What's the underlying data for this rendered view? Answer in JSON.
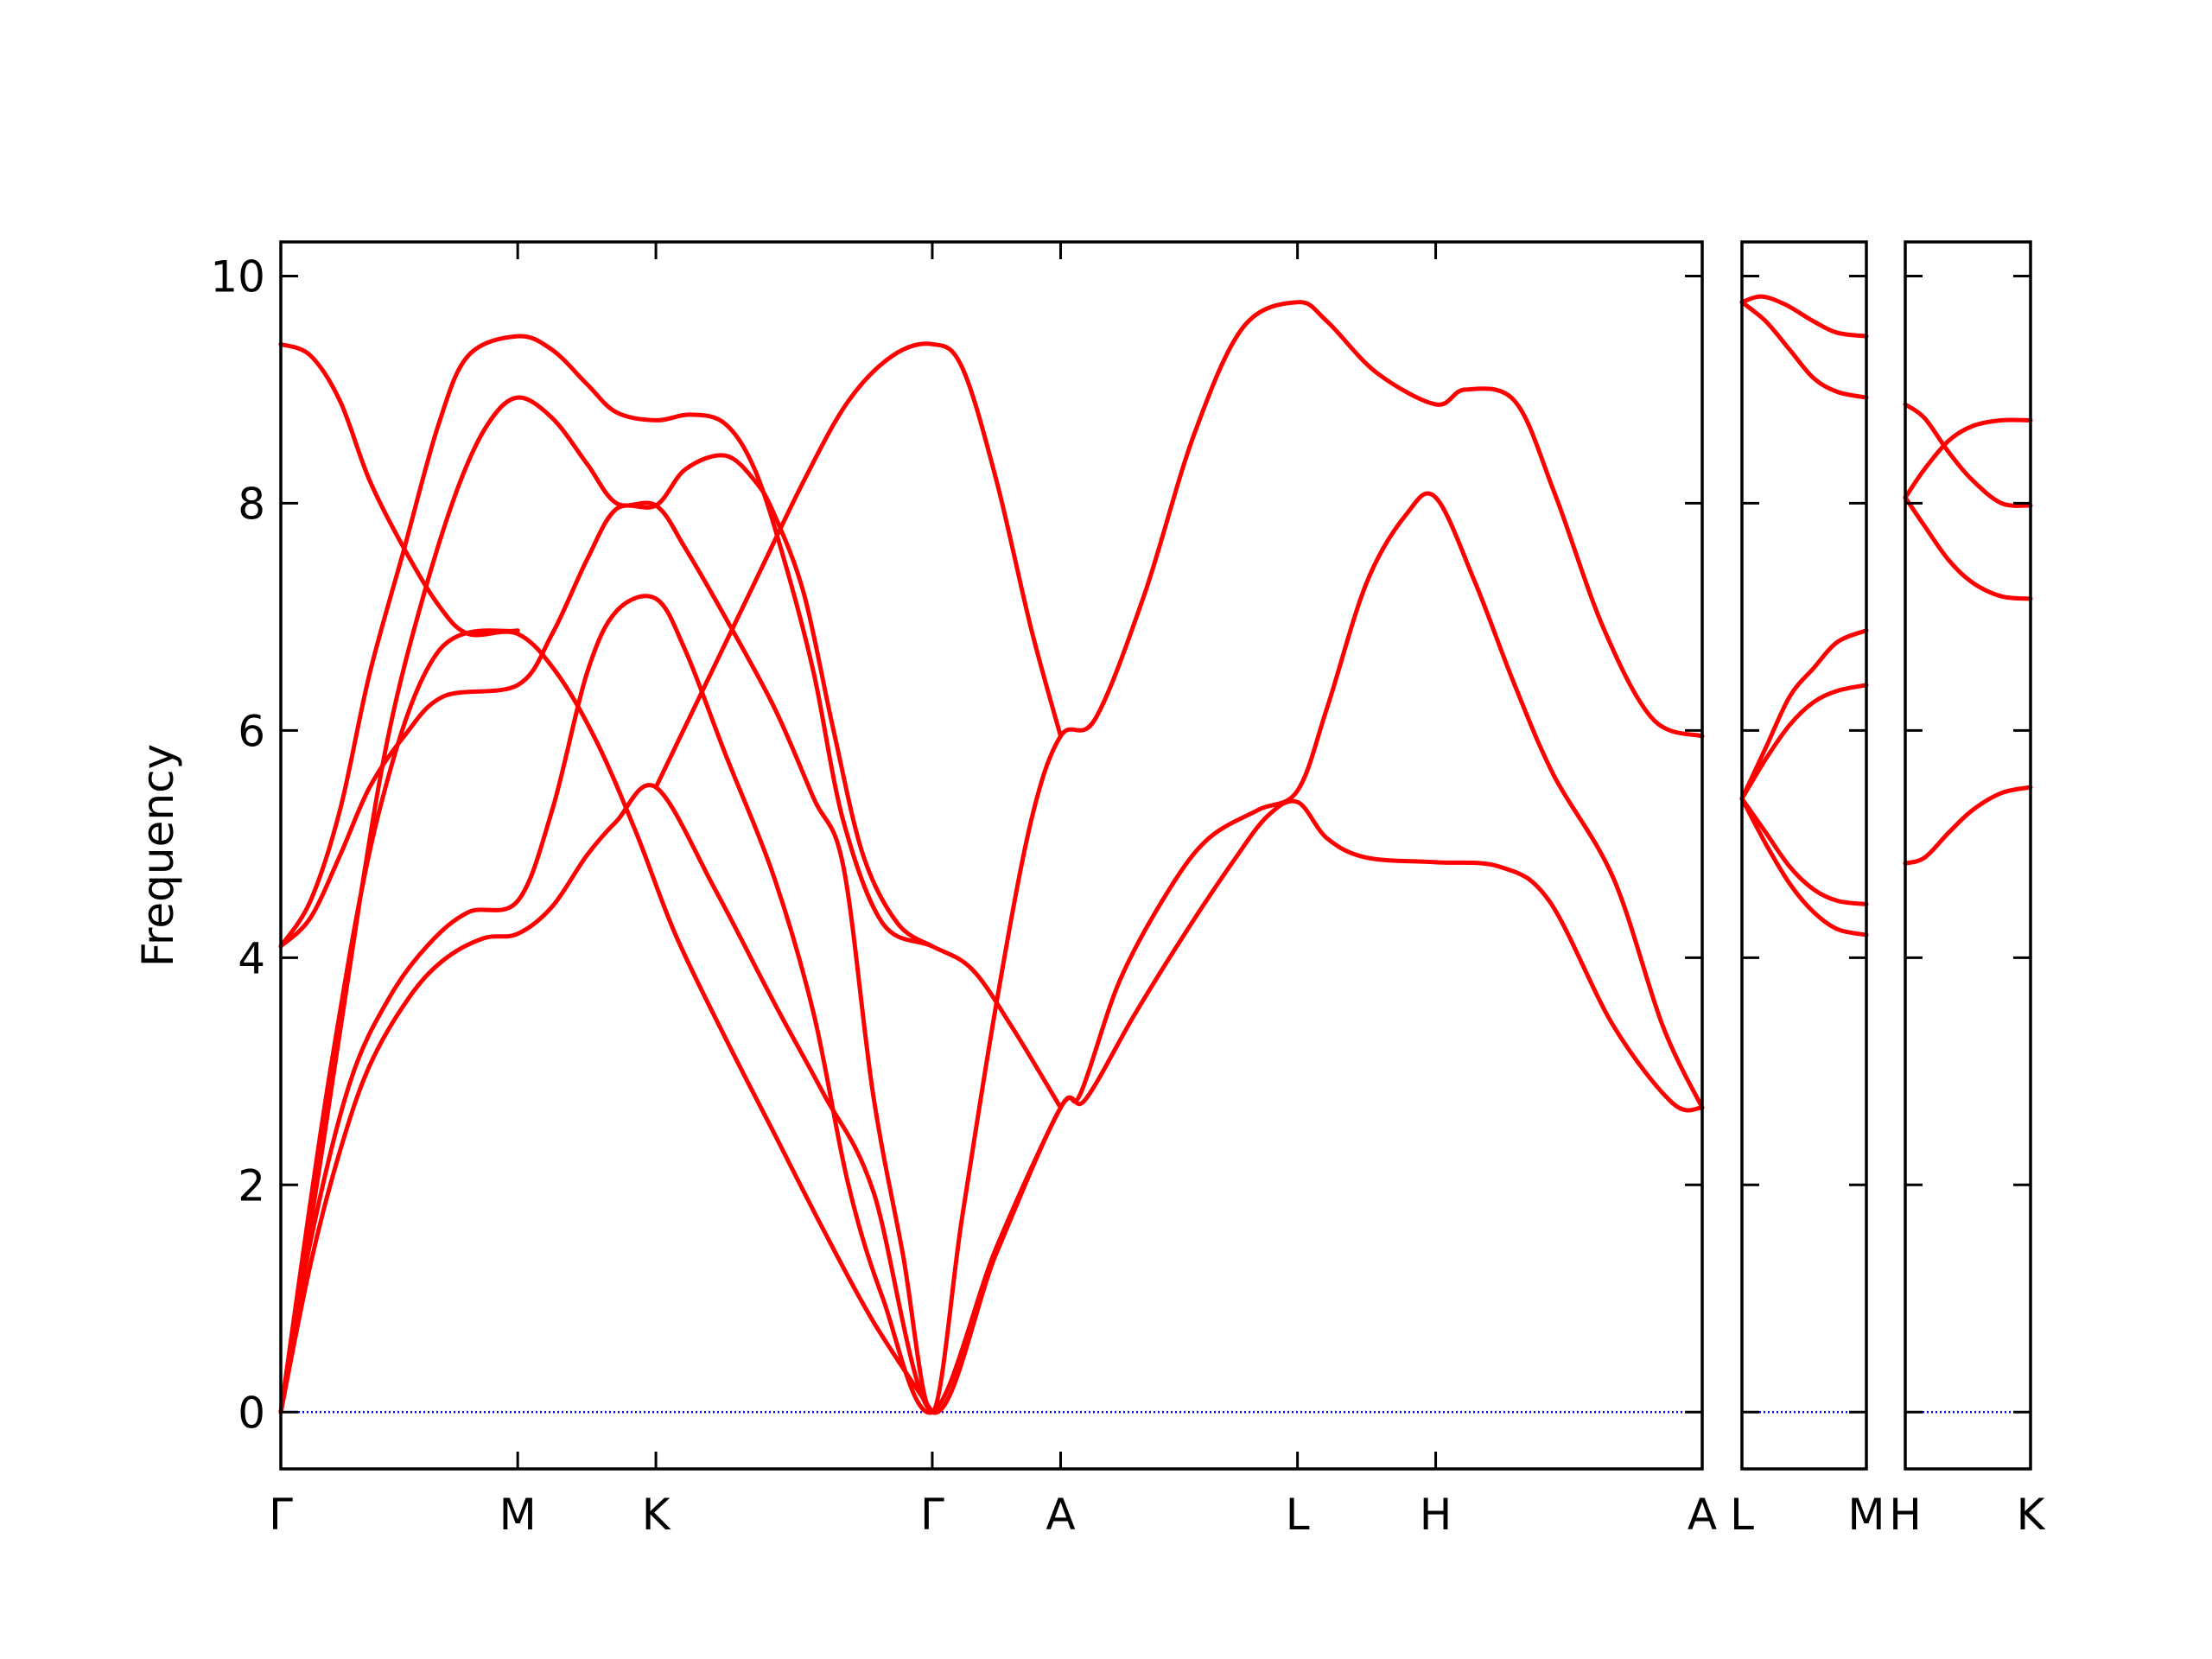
{
  "chart_data": {
    "type": "line",
    "ylabel": "Frequency",
    "ylim": [
      -0.5,
      10.3
    ],
    "yticks": [
      0,
      2,
      4,
      6,
      8,
      10
    ],
    "grid": false,
    "legend": "none",
    "colors": {
      "bands": "#ff0000",
      "zero_line": "#0000ff",
      "axes": "#000000"
    },
    "panels": [
      {
        "xlim": [
          0,
          2.88
        ],
        "ticks": [
          {
            "x": 0.0,
            "label": "Γ"
          },
          {
            "x": 0.48,
            "label": "M"
          },
          {
            "x": 0.76,
            "label": "K"
          },
          {
            "x": 1.32,
            "label": "Γ"
          },
          {
            "x": 1.58,
            "label": "A"
          },
          {
            "x": 2.06,
            "label": "L"
          },
          {
            "x": 2.34,
            "label": "H"
          },
          {
            "x": 2.88,
            "label": "A"
          }
        ],
        "bands": [
          [
            [
              0,
              0
            ],
            [
              0.06,
              1.3
            ],
            [
              0.12,
              2.3
            ],
            [
              0.18,
              3.05
            ],
            [
              0.26,
              3.65
            ],
            [
              0.33,
              3.98
            ],
            [
              0.41,
              4.17
            ],
            [
              0.48,
              4.21
            ],
            [
              0.55,
              4.45
            ],
            [
              0.62,
              4.9
            ],
            [
              0.68,
              5.2
            ],
            [
              0.76,
              5.5
            ],
            [
              0.88,
              4.6
            ],
            [
              1.0,
              3.6
            ],
            [
              1.1,
              2.8
            ],
            [
              1.2,
              1.95
            ],
            [
              1.32,
              0
            ],
            [
              1.45,
              1.4
            ],
            [
              1.58,
              2.68
            ],
            [
              1.63,
              2.75
            ],
            [
              1.73,
              3.5
            ],
            [
              1.83,
              4.2
            ],
            [
              1.93,
              4.85
            ],
            [
              2.0,
              5.25
            ],
            [
              2.06,
              5.37
            ],
            [
              2.12,
              5.05
            ],
            [
              2.2,
              4.88
            ],
            [
              2.34,
              4.84
            ],
            [
              2.47,
              4.8
            ],
            [
              2.57,
              4.5
            ],
            [
              2.7,
              3.4
            ],
            [
              2.82,
              2.72
            ],
            [
              2.88,
              2.68
            ]
          ],
          [
            [
              0,
              0
            ],
            [
              0.06,
              1.5
            ],
            [
              0.14,
              2.9
            ],
            [
              0.22,
              3.65
            ],
            [
              0.3,
              4.12
            ],
            [
              0.38,
              4.4
            ],
            [
              0.48,
              4.5
            ],
            [
              0.55,
              5.3
            ],
            [
              0.62,
              6.5
            ],
            [
              0.68,
              7.05
            ],
            [
              0.76,
              7.16
            ],
            [
              0.82,
              6.7
            ],
            [
              0.9,
              5.8
            ],
            [
              1.0,
              4.7
            ],
            [
              1.08,
              3.5
            ],
            [
              1.15,
              2.0
            ],
            [
              1.22,
              1.0
            ],
            [
              1.32,
              0
            ],
            [
              1.45,
              1.45
            ],
            [
              1.58,
              2.68
            ],
            [
              1.62,
              2.8
            ],
            [
              1.7,
              3.8
            ],
            [
              1.8,
              4.6
            ],
            [
              1.88,
              5.05
            ],
            [
              1.98,
              5.3
            ],
            [
              2.06,
              5.47
            ],
            [
              2.12,
              6.2
            ],
            [
              2.2,
              7.3
            ],
            [
              2.28,
              7.9
            ],
            [
              2.34,
              8.05
            ],
            [
              2.42,
              7.3
            ],
            [
              2.5,
              6.4
            ],
            [
              2.58,
              5.6
            ],
            [
              2.7,
              4.7
            ],
            [
              2.8,
              3.4
            ],
            [
              2.88,
              2.68
            ]
          ],
          [
            [
              0,
              0
            ],
            [
              0.08,
              2.2
            ],
            [
              0.16,
              4.5
            ],
            [
              0.22,
              6.0
            ],
            [
              0.29,
              7.2
            ],
            [
              0.36,
              8.15
            ],
            [
              0.42,
              8.7
            ],
            [
              0.48,
              8.93
            ],
            [
              0.55,
              8.75
            ],
            [
              0.62,
              8.35
            ],
            [
              0.68,
              8.0
            ],
            [
              0.76,
              7.98
            ],
            [
              0.82,
              7.6
            ],
            [
              0.9,
              7.0
            ],
            [
              1.0,
              6.2
            ],
            [
              1.08,
              5.4
            ],
            [
              1.14,
              4.8
            ],
            [
              1.2,
              2.8
            ],
            [
              1.26,
              1.4
            ],
            [
              1.32,
              0
            ],
            [
              1.38,
              1.7
            ],
            [
              1.45,
              3.6
            ],
            [
              1.52,
              5.2
            ],
            [
              1.58,
              5.95
            ],
            [
              1.65,
              6.1
            ],
            [
              1.75,
              7.2
            ],
            [
              1.85,
              8.6
            ],
            [
              1.95,
              9.55
            ],
            [
              2.06,
              9.77
            ],
            [
              2.12,
              9.6
            ],
            [
              2.22,
              9.15
            ],
            [
              2.34,
              8.87
            ],
            [
              2.4,
              9.0
            ],
            [
              2.5,
              8.9
            ],
            [
              2.58,
              8.1
            ],
            [
              2.68,
              6.9
            ],
            [
              2.78,
              6.1
            ],
            [
              2.88,
              5.95
            ]
          ],
          [
            [
              0,
              4.1
            ],
            [
              0.06,
              4.5
            ],
            [
              0.12,
              5.3
            ],
            [
              0.18,
              6.5
            ],
            [
              0.25,
              7.6
            ],
            [
              0.32,
              8.7
            ],
            [
              0.38,
              9.3
            ],
            [
              0.48,
              9.47
            ],
            [
              0.55,
              9.35
            ],
            [
              0.62,
              9.05
            ],
            [
              0.68,
              8.8
            ],
            [
              0.76,
              8.73
            ],
            [
              0.83,
              8.78
            ],
            [
              0.9,
              8.7
            ],
            [
              0.96,
              8.3
            ],
            [
              1.02,
              7.5
            ],
            [
              1.08,
              6.5
            ],
            [
              1.14,
              5.2
            ],
            [
              1.22,
              4.3
            ],
            [
              1.32,
              4.1
            ],
            [
              1.4,
              3.9
            ],
            [
              1.48,
              3.4
            ],
            [
              1.58,
              2.68
            ]
          ],
          [
            [
              0,
              4.1
            ],
            [
              0.06,
              4.35
            ],
            [
              0.12,
              4.9
            ],
            [
              0.18,
              5.5
            ],
            [
              0.25,
              5.95
            ],
            [
              0.33,
              6.3
            ],
            [
              0.48,
              6.4
            ],
            [
              0.55,
              6.85
            ],
            [
              0.62,
              7.5
            ],
            [
              0.68,
              7.95
            ],
            [
              0.76,
              7.98
            ],
            [
              0.82,
              8.3
            ],
            [
              0.9,
              8.42
            ],
            [
              0.96,
              8.2
            ],
            [
              1.0,
              7.9
            ],
            [
              1.06,
              7.2
            ],
            [
              1.12,
              6.0
            ],
            [
              1.18,
              4.9
            ],
            [
              1.25,
              4.3
            ],
            [
              1.32,
              4.1
            ]
          ],
          [
            [
              0,
              9.4
            ],
            [
              0.06,
              9.3
            ],
            [
              0.12,
              8.9
            ],
            [
              0.18,
              8.2
            ],
            [
              0.25,
              7.6
            ],
            [
              0.32,
              7.1
            ],
            [
              0.38,
              6.85
            ],
            [
              0.48,
              6.85
            ],
            [
              0.56,
              6.5
            ],
            [
              0.64,
              5.9
            ],
            [
              0.72,
              5.1
            ],
            [
              0.8,
              4.2
            ],
            [
              0.9,
              3.3
            ],
            [
              1.0,
              2.45
            ],
            [
              1.1,
              1.6
            ],
            [
              1.2,
              0.8
            ],
            [
              1.32,
              0
            ]
          ],
          [
            [
              0,
              0
            ],
            [
              0.1,
              3.0
            ],
            [
              0.2,
              5.3
            ],
            [
              0.32,
              6.7
            ],
            [
              0.48,
              6.88
            ]
          ],
          [
            [
              0.76,
              5.5
            ],
            [
              0.86,
              6.4
            ],
            [
              0.96,
              7.3
            ],
            [
              1.06,
              8.2
            ],
            [
              1.15,
              8.9
            ],
            [
              1.24,
              9.3
            ],
            [
              1.32,
              9.4
            ],
            [
              1.38,
              9.2
            ],
            [
              1.45,
              8.2
            ],
            [
              1.52,
              6.9
            ],
            [
              1.58,
              5.95
            ]
          ]
        ]
      },
      {
        "xlim": [
          0,
          0.26
        ],
        "ticks": [
          {
            "x": 0.0,
            "label": "L"
          },
          {
            "x": 0.26,
            "label": "M"
          }
        ],
        "bands": [
          [
            [
              0,
              9.77
            ],
            [
              0.04,
              9.82
            ],
            [
              0.09,
              9.75
            ],
            [
              0.15,
              9.6
            ],
            [
              0.2,
              9.5
            ],
            [
              0.26,
              9.47
            ]
          ],
          [
            [
              0,
              9.77
            ],
            [
              0.05,
              9.6
            ],
            [
              0.1,
              9.35
            ],
            [
              0.15,
              9.1
            ],
            [
              0.2,
              8.98
            ],
            [
              0.26,
              8.93
            ]
          ],
          [
            [
              0,
              5.4
            ],
            [
              0.05,
              5.85
            ],
            [
              0.1,
              6.3
            ],
            [
              0.15,
              6.55
            ],
            [
              0.2,
              6.78
            ],
            [
              0.26,
              6.88
            ]
          ],
          [
            [
              0,
              5.4
            ],
            [
              0.05,
              5.75
            ],
            [
              0.1,
              6.05
            ],
            [
              0.15,
              6.25
            ],
            [
              0.2,
              6.35
            ],
            [
              0.26,
              6.4
            ]
          ],
          [
            [
              0,
              5.4
            ],
            [
              0.05,
              5.1
            ],
            [
              0.1,
              4.8
            ],
            [
              0.15,
              4.6
            ],
            [
              0.2,
              4.5
            ],
            [
              0.26,
              4.47
            ]
          ],
          [
            [
              0,
              5.4
            ],
            [
              0.05,
              5.0
            ],
            [
              0.1,
              4.65
            ],
            [
              0.15,
              4.4
            ],
            [
              0.2,
              4.25
            ],
            [
              0.26,
              4.2
            ]
          ]
        ]
      },
      {
        "xlim": [
          0,
          0.26
        ],
        "ticks": [
          {
            "x": 0.0,
            "label": "H"
          },
          {
            "x": 0.26,
            "label": "K"
          }
        ],
        "bands": [
          [
            [
              0,
              8.87
            ],
            [
              0.04,
              8.75
            ],
            [
              0.09,
              8.45
            ],
            [
              0.14,
              8.2
            ],
            [
              0.2,
              8.0
            ],
            [
              0.26,
              7.98
            ]
          ],
          [
            [
              0,
              8.05
            ],
            [
              0.04,
              8.3
            ],
            [
              0.09,
              8.55
            ],
            [
              0.14,
              8.68
            ],
            [
              0.2,
              8.73
            ],
            [
              0.26,
              8.73
            ]
          ],
          [
            [
              0,
              8.05
            ],
            [
              0.04,
              7.8
            ],
            [
              0.09,
              7.5
            ],
            [
              0.14,
              7.3
            ],
            [
              0.2,
              7.18
            ],
            [
              0.26,
              7.16
            ]
          ],
          [
            [
              0,
              4.83
            ],
            [
              0.04,
              4.88
            ],
            [
              0.09,
              5.1
            ],
            [
              0.14,
              5.3
            ],
            [
              0.2,
              5.45
            ],
            [
              0.26,
              5.5
            ]
          ]
        ]
      }
    ]
  }
}
